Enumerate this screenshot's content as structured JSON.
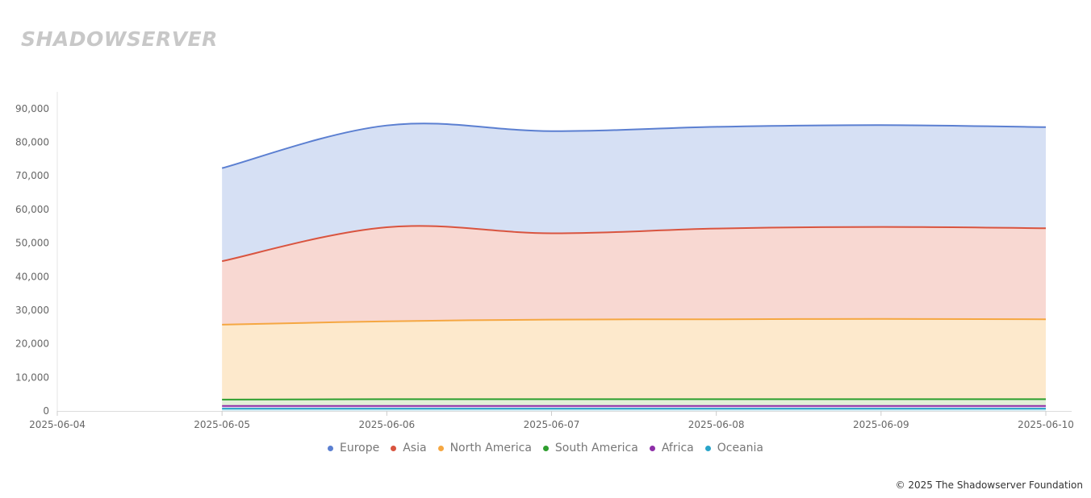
{
  "header": {
    "logo_text": "SHADOWSERVER"
  },
  "footer": {
    "copyright": "© 2025 The Shadowserver Foundation"
  },
  "chart_data": {
    "type": "area",
    "stacked": true,
    "x": [
      "2025-06-04",
      "2025-06-05",
      "2025-06-06",
      "2025-06-07",
      "2025-06-08",
      "2025-06-09",
      "2025-06-10"
    ],
    "ylim": [
      0,
      95000
    ],
    "yticks": [
      0,
      10000,
      20000,
      30000,
      40000,
      50000,
      60000,
      70000,
      80000,
      90000
    ],
    "ytick_labels": [
      "0",
      "10,000",
      "20,000",
      "30,000",
      "40,000",
      "50,000",
      "60,000",
      "70,000",
      "80,000",
      "90,000"
    ],
    "grid": false,
    "legend_position": "bottom-center",
    "series": [
      {
        "name": "Europe",
        "color": "#5b7fd1",
        "fill": "#d6e0f4",
        "values": [
          null,
          27700,
          30300,
          30400,
          30300,
          30300,
          30100
        ]
      },
      {
        "name": "Asia",
        "color": "#d9543f",
        "fill": "#f8d8d2",
        "values": [
          null,
          18900,
          28000,
          25700,
          27000,
          27400,
          27100
        ]
      },
      {
        "name": "North America",
        "color": "#f5a742",
        "fill": "#fde9cc",
        "values": [
          null,
          22300,
          23200,
          23700,
          23800,
          23900,
          23800
        ]
      },
      {
        "name": "South America",
        "color": "#2e9e2e",
        "fill": "#e2efd7",
        "values": [
          null,
          1900,
          2000,
          2000,
          2000,
          2000,
          2000
        ]
      },
      {
        "name": "Africa",
        "color": "#8e2fa8",
        "fill": "#e7d7ee",
        "values": [
          null,
          800,
          800,
          800,
          800,
          800,
          800
        ]
      },
      {
        "name": "Oceania",
        "color": "#29a4c9",
        "fill": "#d4ecf4",
        "values": [
          null,
          700,
          700,
          700,
          700,
          700,
          700
        ]
      }
    ]
  }
}
